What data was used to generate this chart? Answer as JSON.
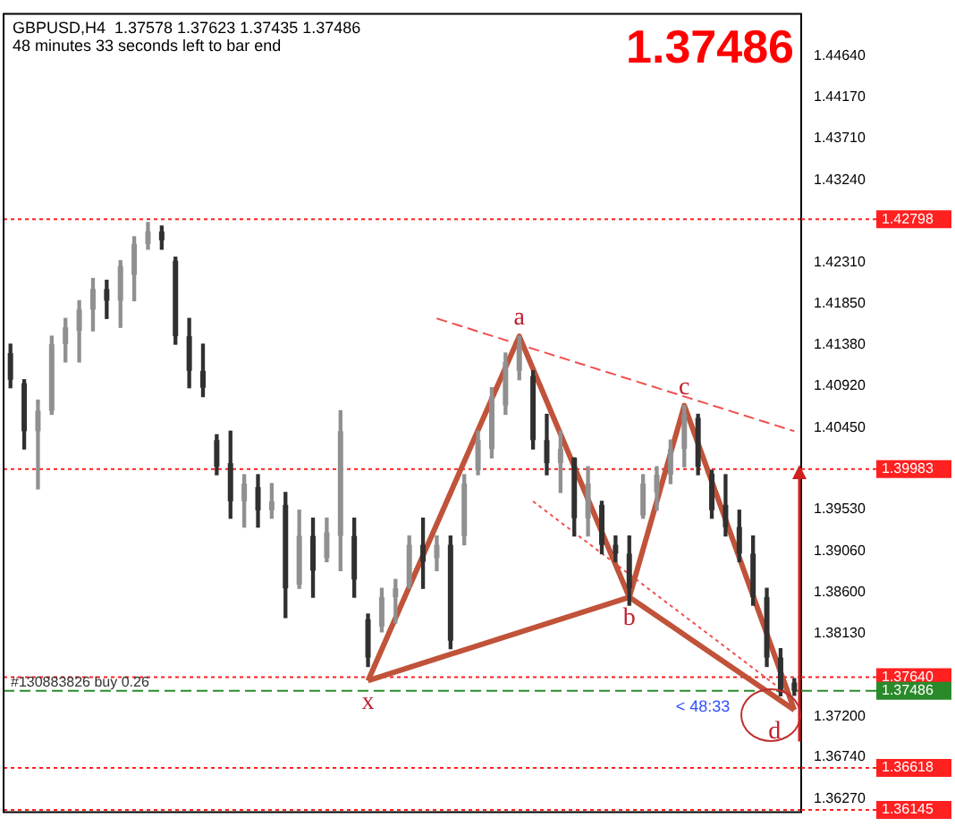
{
  "chart_data": {
    "type": "candlestick",
    "title": "GBPUSD,H4  1.37578 1.37623 1.37435 1.37486",
    "subtitle": "48 minutes 33 seconds left to bar end",
    "categories": [
      null,
      null,
      null,
      null,
      null,
      null,
      null,
      null,
      null,
      null,
      null,
      null,
      null,
      null,
      null,
      null,
      null,
      null,
      null,
      null,
      null,
      null,
      null,
      null,
      null,
      null,
      null,
      null,
      null,
      null,
      null,
      null,
      null,
      null,
      null,
      null,
      null,
      null,
      null,
      null,
      null,
      null,
      null,
      null,
      null,
      null,
      null,
      null,
      null,
      null,
      null,
      null,
      null,
      null,
      null,
      null,
      null,
      null
    ],
    "colors": [
      "#303030",
      "#303030",
      "#909090",
      "#909090",
      "#909090",
      "#909090",
      "#909090",
      "#303030",
      "#909090",
      "#909090",
      "#909090",
      "#303030",
      "#303030",
      "#303030",
      "#303030",
      "#303030",
      "#303030",
      "#909090",
      "#303030",
      "#909090",
      "#303030",
      "#909090",
      "#303030",
      "#909090",
      "#909090",
      "#303030",
      "#303030",
      "#909090",
      "#909090",
      "#909090",
      "#303030",
      "#909090",
      "#303030",
      "#909090",
      "#909090",
      "#909090",
      "#909090",
      "#909090",
      "#303030",
      "#303030",
      "#909090",
      "#303030",
      "#909090",
      "#303030",
      "#303030",
      "#303030",
      "#909090",
      "#909090",
      "#909090",
      "#909090",
      "#303030",
      "#303030",
      "#303030",
      "#303030",
      "#303030",
      "#303030",
      "#303030",
      "#303030"
    ],
    "ohlc": [
      [
        1.4129,
        1.4139,
        1.409,
        1.4099
      ],
      [
        1.4095,
        1.4099,
        1.4021,
        1.4041
      ],
      [
        1.4041,
        1.4076,
        1.3976,
        1.4064
      ],
      [
        1.4064,
        1.4148,
        1.406,
        1.4139
      ],
      [
        1.4139,
        1.4168,
        1.4119,
        1.4158
      ],
      [
        1.4154,
        1.4188,
        1.4119,
        1.4178
      ],
      [
        1.4178,
        1.4213,
        1.4154,
        1.4201
      ],
      [
        1.4201,
        1.4211,
        1.4168,
        1.4188
      ],
      [
        1.4188,
        1.4233,
        1.4158,
        1.4227
      ],
      [
        1.4217,
        1.426,
        1.4188,
        1.4252
      ],
      [
        1.4252,
        1.4276,
        1.4246,
        1.4266
      ],
      [
        1.4266,
        1.4272,
        1.4246,
        1.4256
      ],
      [
        1.4233,
        1.4237,
        1.4139,
        1.4148
      ],
      [
        1.4148,
        1.4168,
        1.409,
        1.4109
      ],
      [
        1.4109,
        1.4139,
        1.408,
        1.409
      ],
      [
        1.4031,
        1.4037,
        1.3992,
        1.4001
      ],
      [
        1.4005,
        1.4041,
        1.3943,
        1.3962
      ],
      [
        1.3962,
        1.3992,
        1.3933,
        1.3982
      ],
      [
        1.3978,
        1.3992,
        1.3933,
        1.3952
      ],
      [
        1.3952,
        1.3982,
        1.3943,
        1.3962
      ],
      [
        1.3958,
        1.3972,
        1.3831,
        1.3864
      ],
      [
        1.3868,
        1.3952,
        1.3864,
        1.3923
      ],
      [
        1.3923,
        1.3943,
        1.3854,
        1.3884
      ],
      [
        1.3898,
        1.3943,
        1.3894,
        1.3927
      ],
      [
        1.3923,
        1.4064,
        1.3884,
        1.4041
      ],
      [
        1.3923,
        1.3943,
        1.3854,
        1.3874
      ],
      [
        1.3829,
        1.3835,
        1.3776,
        1.3786
      ],
      [
        1.3821,
        1.3864,
        1.3815,
        1.3854
      ],
      [
        1.3854,
        1.3874,
        1.3825,
        1.3864
      ],
      [
        1.3868,
        1.3923,
        1.3864,
        1.3913
      ],
      [
        1.3913,
        1.3943,
        1.3864,
        1.3894
      ],
      [
        1.3898,
        1.3923,
        1.3884,
        1.3913
      ],
      [
        1.3913,
        1.3923,
        1.3796,
        1.3805
      ],
      [
        1.3923,
        1.3992,
        1.3913,
        1.3982
      ],
      [
        1.3997,
        1.4041,
        1.3992,
        1.4031
      ],
      [
        1.4021,
        1.409,
        1.4011,
        1.408
      ],
      [
        1.407,
        1.4129,
        1.406,
        1.4119
      ],
      [
        1.4109,
        1.4148,
        1.4099,
        1.4139
      ],
      [
        1.4103,
        1.4109,
        1.4021,
        1.4031
      ],
      [
        1.4031,
        1.406,
        1.3992,
        1.4005
      ],
      [
        1.4005,
        1.4041,
        1.3972,
        1.4021
      ],
      [
        1.4011,
        1.4011,
        1.3923,
        1.3943
      ],
      [
        1.3943,
        1.4001,
        1.3923,
        1.3982
      ],
      [
        1.3958,
        1.3962,
        1.3903,
        1.3913
      ],
      [
        1.3913,
        1.3923,
        1.3894,
        1.3903
      ],
      [
        1.3903,
        1.3923,
        1.3845,
        1.3864
      ],
      [
        1.3946,
        1.3992,
        1.3943,
        1.3982
      ],
      [
        1.3972,
        1.4001,
        1.3952,
        1.3992
      ],
      [
        1.3992,
        1.4031,
        1.3982,
        1.4021
      ],
      [
        1.4021,
        1.407,
        1.4001,
        1.406
      ],
      [
        1.4056,
        1.406,
        1.3992,
        1.4001
      ],
      [
        1.3993,
        1.3997,
        1.3943,
        1.3952
      ],
      [
        1.3958,
        1.3992,
        1.3923,
        1.3933
      ],
      [
        1.3933,
        1.3952,
        1.3894,
        1.3903
      ],
      [
        1.3903,
        1.3923,
        1.3845,
        1.3854
      ],
      [
        1.3854,
        1.3864,
        1.3776,
        1.3786
      ],
      [
        1.3786,
        1.3796,
        1.3743,
        1.3747
      ],
      [
        1.37578,
        1.37623,
        1.37435,
        1.37486
      ]
    ],
    "series": [
      {
        "type": "line",
        "color": "#c0533a",
        "line_style": "solid",
        "values": [
          null,
          null,
          null,
          null,
          null,
          null,
          null,
          null,
          null,
          null,
          null,
          null,
          null,
          null,
          null,
          null,
          null,
          null,
          null,
          null,
          null,
          null,
          null,
          null,
          null,
          null,
          1.376,
          null,
          null,
          null,
          null,
          null,
          null,
          null,
          null,
          null,
          null,
          1.4148,
          null,
          null,
          null,
          null,
          null,
          null,
          null,
          1.3854,
          null,
          null,
          null,
          1.407,
          null,
          null,
          null,
          null,
          null,
          null,
          null,
          1.3727
        ]
      },
      {
        "type": "line",
        "color": "#c0533a",
        "line_style": "solid",
        "values": [
          null,
          null,
          null,
          null,
          null,
          null,
          null,
          null,
          null,
          null,
          null,
          null,
          null,
          null,
          null,
          null,
          null,
          null,
          null,
          null,
          null,
          null,
          null,
          null,
          null,
          null,
          1.376,
          null,
          null,
          null,
          null,
          null,
          null,
          null,
          null,
          null,
          null,
          null,
          null,
          null,
          null,
          null,
          null,
          null,
          null,
          1.3854,
          null,
          null,
          null,
          null,
          null,
          null,
          null,
          null,
          null,
          null,
          null,
          1.3727
        ]
      },
      {
        "type": "line",
        "color": "#f05050",
        "line_style": "dashed",
        "values": [
          null,
          null,
          null,
          null,
          null,
          null,
          null,
          null,
          null,
          null,
          null,
          null,
          null,
          null,
          null,
          null,
          null,
          null,
          null,
          null,
          null,
          null,
          null,
          null,
          null,
          null,
          null,
          null,
          null,
          null,
          null,
          1.4168,
          null,
          null,
          null,
          null,
          null,
          null,
          null,
          null,
          null,
          null,
          null,
          null,
          null,
          null,
          null,
          null,
          null,
          null,
          null,
          null,
          null,
          null,
          null,
          null,
          null,
          1.4041
        ]
      },
      {
        "type": "line",
        "color": "#f05050",
        "line_style": "dotted",
        "values": [
          null,
          null,
          null,
          null,
          null,
          null,
          null,
          null,
          null,
          null,
          null,
          null,
          null,
          null,
          null,
          null,
          null,
          null,
          null,
          null,
          null,
          null,
          null,
          null,
          null,
          null,
          null,
          null,
          null,
          null,
          null,
          null,
          null,
          null,
          null,
          null,
          null,
          null,
          1.3962,
          null,
          null,
          null,
          null,
          null,
          null,
          null,
          null,
          null,
          null,
          null,
          null,
          null,
          null,
          null,
          null,
          null,
          null,
          1.3739
        ]
      }
    ],
    "ylim": [
      1.3612,
      1.4511
    ],
    "yticks": [
      {
        "value": 1.4464,
        "label": "1.44640"
      },
      {
        "value": 1.4417,
        "label": "1.44170"
      },
      {
        "value": 1.4371,
        "label": "1.43710"
      },
      {
        "value": 1.4324,
        "label": "1.43240"
      },
      {
        "value": 1.4231,
        "label": "1.42310"
      },
      {
        "value": 1.4185,
        "label": "1.41850"
      },
      {
        "value": 1.4138,
        "label": "1.41380"
      },
      {
        "value": 1.4092,
        "label": "1.40920"
      },
      {
        "value": 1.4045,
        "label": "1.40450"
      },
      {
        "value": 1.3953,
        "label": "1.39530"
      },
      {
        "value": 1.3906,
        "label": "1.39060"
      },
      {
        "value": 1.386,
        "label": "1.38600"
      },
      {
        "value": 1.3813,
        "label": "1.38130"
      },
      {
        "value": 1.372,
        "label": "1.37200"
      },
      {
        "value": 1.3674,
        "label": "1.36740"
      },
      {
        "value": 1.3627,
        "label": "1.36270"
      }
    ],
    "tick_labels": "y",
    "grid": false,
    "legend": false,
    "ref_lines": [
      {
        "axis": "y",
        "value": 1.42798,
        "label": "1.42798",
        "color": "#ff2020",
        "line_style": "dotted"
      },
      {
        "axis": "y",
        "value": 1.39983,
        "label": "1.39983",
        "color": "#ff2020",
        "line_style": "dotted"
      },
      {
        "axis": "y",
        "value": 1.3764,
        "label": "1.37640",
        "color": "#ff2020",
        "line_style": "dotted"
      },
      {
        "axis": "y",
        "value": 1.37486,
        "label": "1.37486",
        "color": "#2a8a2a",
        "line_style": "dashed"
      },
      {
        "axis": "y",
        "value": 1.36618,
        "label": "1.36618",
        "color": "#ff2020",
        "line_style": "dotted"
      },
      {
        "axis": "y",
        "value": 1.36145,
        "label": "1.36145",
        "color": "#ff2020",
        "line_style": "dotted"
      }
    ],
    "annotations": [
      "1.37486",
      {
        "text": "#130883826 buy 0.26",
        "y": 1.3764
      },
      "< 48:33",
      "x",
      "a",
      "b",
      "c",
      "d"
    ]
  }
}
